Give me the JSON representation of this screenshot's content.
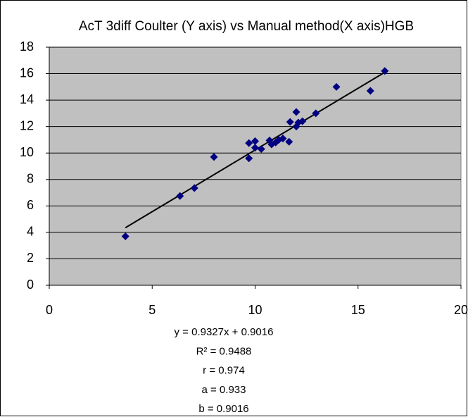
{
  "chart_data": {
    "type": "scatter",
    "title": "AcT 3diff Coulter (Y axis) vs Manual method(X axis)HGB",
    "series": [
      {
        "name": "HGB",
        "color": "#000080",
        "x": [
          3.7,
          6.35,
          7.05,
          8.0,
          9.7,
          9.7,
          10.0,
          10.0,
          10.3,
          10.7,
          10.8,
          11.0,
          11.15,
          11.35,
          11.65,
          11.7,
          12.0,
          12.0,
          12.1,
          12.3,
          12.95,
          13.95,
          15.6,
          16.3
        ],
        "values": [
          3.7,
          6.75,
          7.35,
          9.7,
          9.6,
          10.75,
          10.9,
          10.4,
          10.3,
          10.95,
          10.65,
          10.8,
          11.0,
          11.1,
          10.85,
          12.35,
          13.1,
          12.0,
          12.3,
          12.4,
          13.0,
          15.0,
          14.7,
          16.2
        ]
      }
    ],
    "trendline": {
      "slope": 0.9327,
      "intercept": 0.9016,
      "color": "#000000"
    },
    "annotations": [
      "y = 0.9327x + 0.9016",
      "R² = 0.9488",
      "r = 0.974",
      "a = 0.933",
      "b = 0.9016"
    ],
    "xlim": [
      0,
      20
    ],
    "xticks": [
      0,
      5,
      10,
      15,
      20
    ],
    "ylim": [
      0,
      18
    ],
    "yticks": [
      0,
      2,
      4,
      6,
      8,
      10,
      12,
      14,
      16,
      18
    ],
    "grid": true,
    "plot_background": "#c0c0c0"
  }
}
